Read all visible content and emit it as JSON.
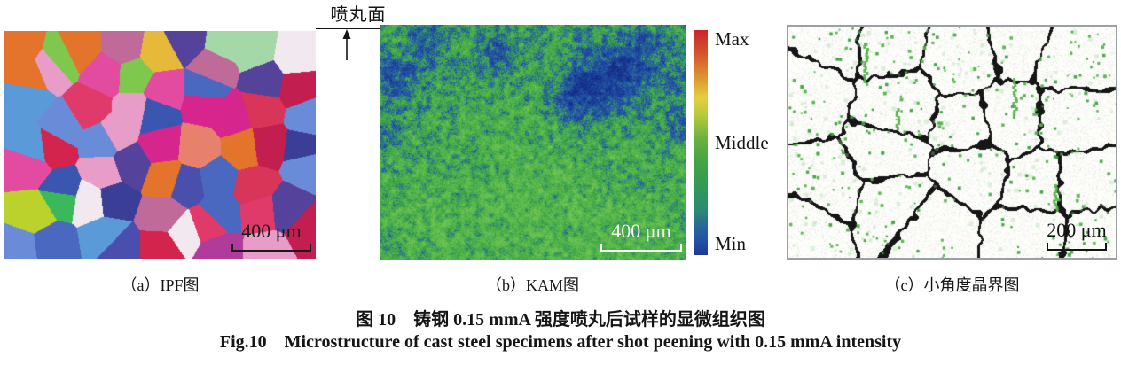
{
  "figure": {
    "peening_surface_label": "喷丸面",
    "caption_zh": "图 10 铸钢 0.15 mmA 强度喷丸后试样的显微组织图",
    "caption_en": "Fig.10 Microstructure of cast steel specimens after shot peening with 0.15 mmA intensity"
  },
  "panels": {
    "a": {
      "label": "（a）IPF图",
      "scale_bar": "400 μm"
    },
    "b": {
      "label": "（b）KAM图",
      "scale_bar": "400 μm"
    },
    "c": {
      "label": "（c）小角度晶界图",
      "scale_bar": "200 μm"
    }
  },
  "colorbar": {
    "max": "Max",
    "middle": "Middle",
    "min": "Min",
    "stops": [
      [
        0,
        "#c9252b"
      ],
      [
        0.1,
        "#d4522c"
      ],
      [
        0.22,
        "#dd9b30"
      ],
      [
        0.3,
        "#e3cf3f"
      ],
      [
        0.38,
        "#b5c93b"
      ],
      [
        0.48,
        "#6bb241"
      ],
      [
        0.58,
        "#45a443"
      ],
      [
        0.7,
        "#2f9a55"
      ],
      [
        0.8,
        "#2b8a74"
      ],
      [
        0.88,
        "#28649c"
      ],
      [
        0.94,
        "#2350a6"
      ],
      [
        1,
        "#1c3a90"
      ]
    ]
  },
  "render": {
    "ipf": {
      "seed": 11,
      "palette": [
        "#d2244c",
        "#e03a6a",
        "#c21e50",
        "#d6258c",
        "#e24ba0",
        "#b03b9a",
        "#6a3f9c",
        "#7a55aa",
        "#55429a",
        "#4a4fae",
        "#3a56b0",
        "#4a68c0",
        "#6a8cd8",
        "#5b9ad8",
        "#3cb85c",
        "#58c04a",
        "#7ec84e",
        "#a5d8a8",
        "#e4742c",
        "#ef9038",
        "#e7b93a",
        "#bcd22c",
        "#e89cc8",
        "#a98fd0",
        "#f2e9f0",
        "#c06a9a",
        "#e8806e",
        "#8a7ab8",
        "#d93558",
        "#3a3e97"
      ]
    },
    "kam": {
      "seed": 5,
      "stops": [
        [
          0,
          "#122f88"
        ],
        [
          0.3,
          "#2351a8"
        ],
        [
          0.44,
          "#2b6f94"
        ],
        [
          0.52,
          "#35985b"
        ],
        [
          0.62,
          "#43a847"
        ],
        [
          0.8,
          "#5ab94c"
        ],
        [
          1,
          "#74c654"
        ]
      ],
      "blobs": [
        [
          250,
          65,
          38,
          0.45
        ],
        [
          215,
          85,
          24,
          0.3
        ],
        [
          285,
          45,
          26,
          0.3
        ],
        [
          132,
          30,
          20,
          0.28
        ],
        [
          20,
          60,
          30,
          0.32
        ],
        [
          55,
          15,
          22,
          0.26
        ],
        [
          8,
          120,
          18,
          0.22
        ],
        [
          340,
          115,
          22,
          0.22
        ],
        [
          300,
          20,
          18,
          0.22
        ],
        [
          330,
          60,
          26,
          0.2
        ]
      ],
      "boosts": [
        [
          170,
          195,
          75,
          0.12
        ],
        [
          280,
          235,
          60,
          0.1
        ],
        [
          60,
          230,
          50,
          0.08
        ]
      ]
    },
    "lagb": {
      "seed": 3,
      "boundary": "#161616",
      "background": "#fdfdfa",
      "dot_dark": "#3da03d",
      "dot_mid": "#55b24a",
      "dot_light": "#9ed49a",
      "streaks": [
        [
          86,
          18,
          46
        ],
        [
          254,
          58,
          45
        ],
        [
          300,
          178,
          28
        ],
        [
          122,
          92,
          24
        ]
      ]
    }
  }
}
